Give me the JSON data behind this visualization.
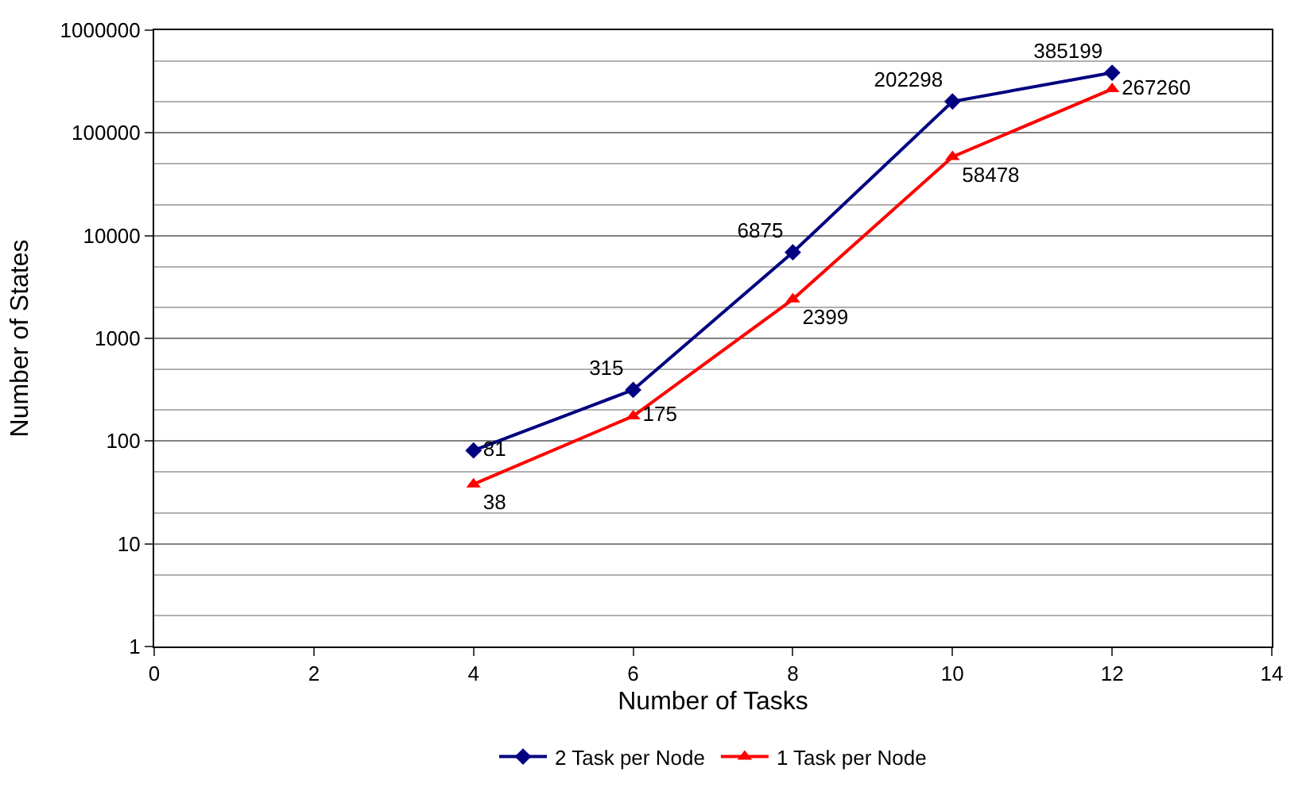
{
  "chart_data": {
    "type": "line",
    "xlabel": "Number of Tasks",
    "ylabel": "Number of States",
    "x": [
      4,
      6,
      8,
      10,
      12
    ],
    "series": [
      {
        "name": "2 Task per Node",
        "color": "#000080",
        "marker": "diamond",
        "values": [
          81,
          315,
          6875,
          202298,
          385199
        ]
      },
      {
        "name": "1 Task per Node",
        "color": "#ff0000",
        "marker": "triangle",
        "values": [
          38,
          175,
          2399,
          58478,
          267260
        ]
      }
    ],
    "xlim": [
      0,
      14
    ],
    "xticks": [
      0,
      2,
      4,
      6,
      8,
      10,
      12,
      14
    ],
    "ylim": [
      1,
      1000000
    ],
    "yticks": [
      1,
      10,
      100,
      1000,
      10000,
      100000,
      1000000
    ],
    "log": "y",
    "grid": "y",
    "legend": "bottom",
    "data_labels": true,
    "line_style": "solid"
  }
}
